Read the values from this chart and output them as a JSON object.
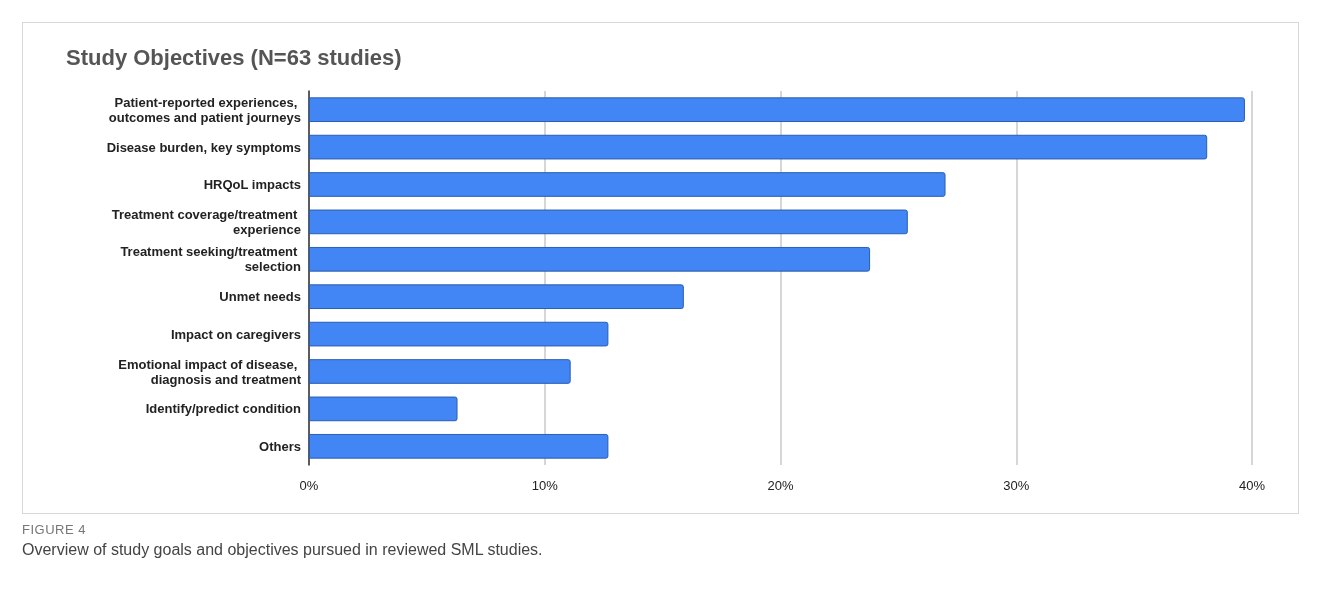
{
  "chart_data": {
    "type": "bar",
    "orientation": "horizontal",
    "title": "Study Objectives (N=63 studies)",
    "categories": [
      "Patient-reported experiences, outcomes and patient journeys",
      "Disease burden, key symptoms",
      "HRQoL impacts",
      "Treatment coverage/treatment experience",
      "Treatment seeking/treatment selection",
      "Unmet needs",
      "Impact on caregivers",
      "Emotional impact of disease, diagnosis and treatment",
      "Identify/predict condition",
      "Others"
    ],
    "values": [
      39.7,
      38.1,
      27.0,
      25.4,
      23.8,
      15.9,
      12.7,
      11.1,
      6.3,
      12.7
    ],
    "color": "#4285f4",
    "xlim": [
      0,
      40
    ],
    "xticks": [
      {
        "value": 0,
        "label": "0%"
      },
      {
        "value": 10,
        "label": "10%"
      },
      {
        "value": 20,
        "label": "20%"
      },
      {
        "value": 30,
        "label": "30%"
      },
      {
        "value": 40,
        "label": "40%"
      }
    ],
    "grid": "x",
    "annotations": [
      "FIGURE 4",
      "Overview of study goals and objectives pursued in reviewed SML studies."
    ]
  }
}
